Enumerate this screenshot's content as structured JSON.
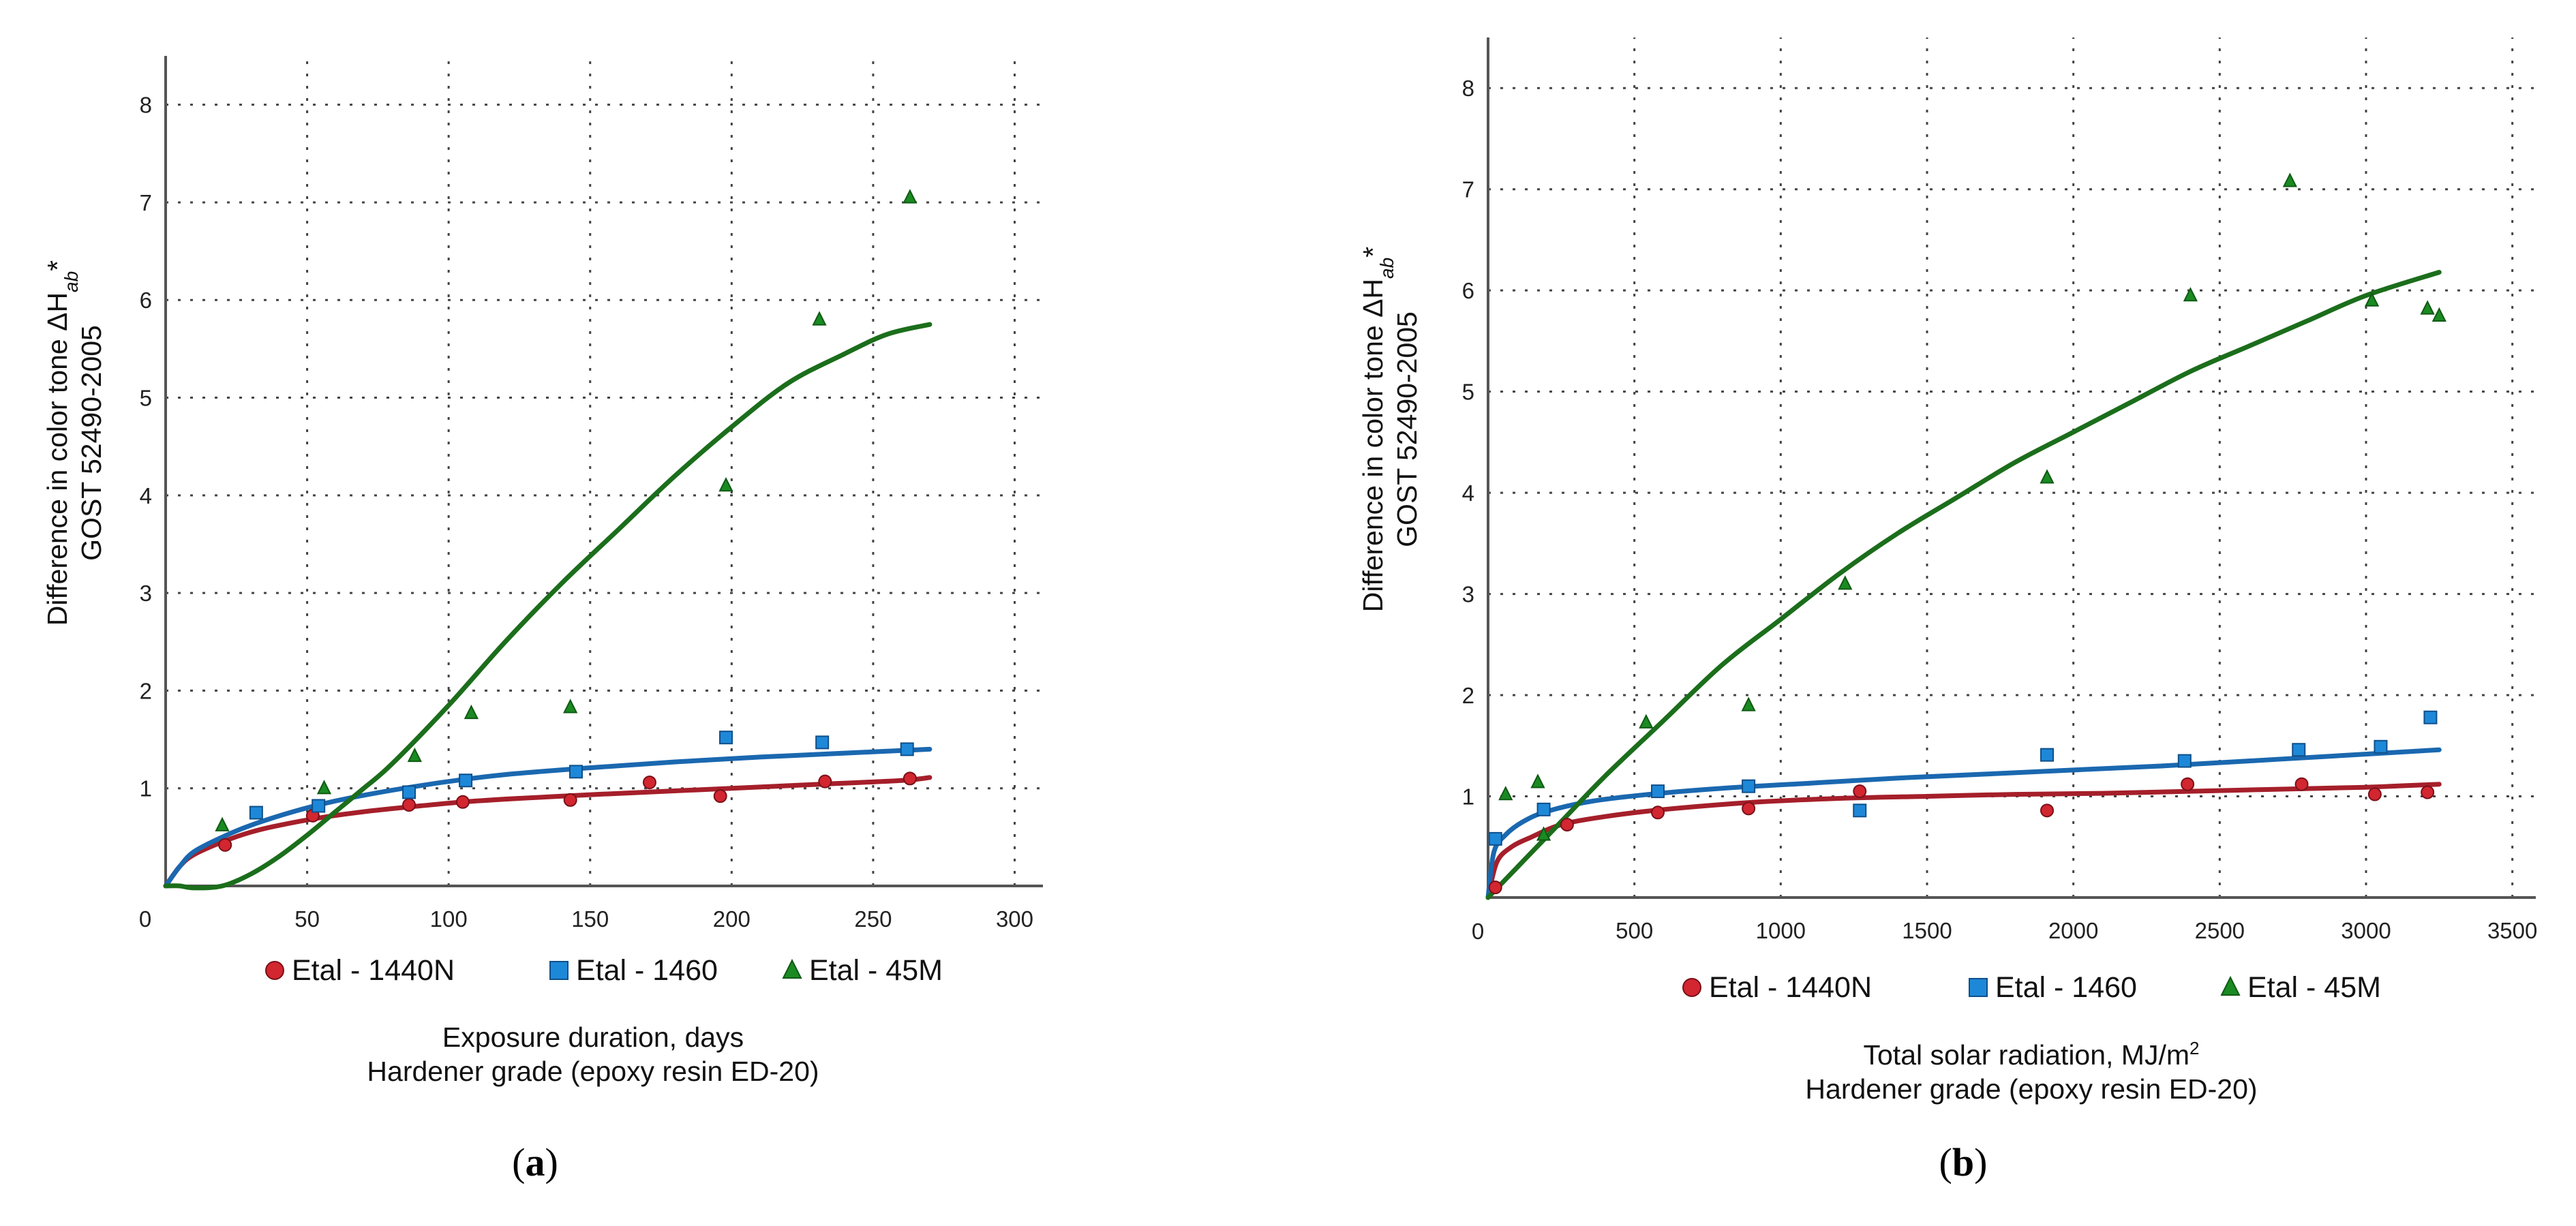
{
  "colors": {
    "red": "#d22630",
    "blue": "#1e88d8",
    "green": "#1a8a22",
    "red_line": "#a51f2a",
    "blue_line": "#1a68b0",
    "green_line": "#1b6e1b"
  },
  "chart_data": [
    {
      "id": "a",
      "type": "scatter",
      "caption_open": "(",
      "caption_letter": "a",
      "caption_close": ")",
      "ylabel_line1": "Difference in color tone ΔH",
      "ylabel_sub": "ab",
      "ylabel_star": "*",
      "ylabel_line2": "GOST  52490-2005",
      "xlabel_line1": "Exposure duration, days",
      "xlabel_sup": "",
      "xlabel_line2": "Hardener grade (epoxy resin ED-20)",
      "xlim": [
        0,
        310
      ],
      "ylim": [
        0,
        8.5
      ],
      "xticks": [
        0,
        50,
        100,
        150,
        200,
        250,
        300
      ],
      "yticks": [
        1,
        2,
        3,
        4,
        5,
        6,
        7,
        8
      ],
      "series": [
        {
          "name": "Etal - 1440N",
          "marker": "circle",
          "color": "red",
          "points": [
            [
              21,
              0.42
            ],
            [
              52,
              0.72
            ],
            [
              86,
              0.83
            ],
            [
              105,
              0.86
            ],
            [
              143,
              0.88
            ],
            [
              171,
              1.06
            ],
            [
              196,
              0.92
            ],
            [
              233,
              1.07
            ],
            [
              263,
              1.1
            ]
          ],
          "fit": [
            [
              0,
              0
            ],
            [
              5,
              0.2
            ],
            [
              10,
              0.32
            ],
            [
              20,
              0.45
            ],
            [
              30,
              0.55
            ],
            [
              40,
              0.62
            ],
            [
              55,
              0.7
            ],
            [
              70,
              0.76
            ],
            [
              90,
              0.82
            ],
            [
              110,
              0.87
            ],
            [
              140,
              0.92
            ],
            [
              170,
              0.96
            ],
            [
              200,
              1.0
            ],
            [
              230,
              1.04
            ],
            [
              260,
              1.08
            ],
            [
              270,
              1.11
            ]
          ]
        },
        {
          "name": "Etal - 1460",
          "marker": "square",
          "color": "blue",
          "points": [
            [
              32,
              0.75
            ],
            [
              54,
              0.82
            ],
            [
              86,
              0.96
            ],
            [
              106,
              1.08
            ],
            [
              145,
              1.17
            ],
            [
              198,
              1.52
            ],
            [
              232,
              1.47
            ],
            [
              262,
              1.4
            ]
          ],
          "fit": [
            [
              0,
              0
            ],
            [
              5,
              0.2
            ],
            [
              10,
              0.35
            ],
            [
              20,
              0.5
            ],
            [
              30,
              0.62
            ],
            [
              45,
              0.76
            ],
            [
              60,
              0.87
            ],
            [
              80,
              0.98
            ],
            [
              100,
              1.07
            ],
            [
              120,
              1.14
            ],
            [
              150,
              1.21
            ],
            [
              180,
              1.27
            ],
            [
              210,
              1.32
            ],
            [
              240,
              1.36
            ],
            [
              270,
              1.4
            ]
          ]
        },
        {
          "name": "Etal - 45M",
          "marker": "triangle",
          "color": "green",
          "points": [
            [
              20,
              0.62
            ],
            [
              56,
              1.0
            ],
            [
              88,
              1.33
            ],
            [
              108,
              1.77
            ],
            [
              143,
              1.83
            ],
            [
              198,
              4.1
            ],
            [
              231,
              5.8
            ],
            [
              263,
              7.05
            ]
          ],
          "fit": [
            [
              0,
              0
            ],
            [
              5,
              0.0
            ],
            [
              10,
              -0.02
            ],
            [
              20,
              0.0
            ],
            [
              30,
              0.12
            ],
            [
              40,
              0.3
            ],
            [
              50,
              0.52
            ],
            [
              60,
              0.76
            ],
            [
              70,
              1.0
            ],
            [
              80,
              1.25
            ],
            [
              100,
              1.85
            ],
            [
              120,
              2.5
            ],
            [
              140,
              3.1
            ],
            [
              160,
              3.65
            ],
            [
              180,
              4.2
            ],
            [
              200,
              4.7
            ],
            [
              220,
              5.15
            ],
            [
              240,
              5.45
            ],
            [
              255,
              5.65
            ],
            [
              270,
              5.75
            ]
          ]
        }
      ]
    },
    {
      "id": "b",
      "type": "scatter",
      "caption_open": "(",
      "caption_letter": "b",
      "caption_close": ")",
      "ylabel_line1": "Difference in color tone ΔH",
      "ylabel_sub": "ab",
      "ylabel_star": "*",
      "ylabel_line2": "GOST  52490-2005",
      "xlabel_line1": "Total solar radiation, MJ/m",
      "xlabel_sup": "2",
      "xlabel_line2": "Hardener grade (epoxy resin ED-20)",
      "xlim": [
        0,
        3580
      ],
      "ylim": [
        0,
        8.5
      ],
      "xticks": [
        0,
        500,
        1000,
        1500,
        2000,
        2500,
        3000,
        3500
      ],
      "yticks": [
        1,
        2,
        3,
        4,
        5,
        6,
        7,
        8
      ],
      "series": [
        {
          "name": "Etal - 1440N",
          "marker": "circle",
          "color": "red",
          "points": [
            [
              25,
              0.1
            ],
            [
              270,
              0.72
            ],
            [
              580,
              0.84
            ],
            [
              890,
              0.88
            ],
            [
              1270,
              1.05
            ],
            [
              1910,
              0.86
            ],
            [
              2390,
              1.12
            ],
            [
              2780,
              1.12
            ],
            [
              3030,
              1.02
            ],
            [
              3210,
              1.04
            ]
          ],
          "fit": [
            [
              0,
              0
            ],
            [
              30,
              0.35
            ],
            [
              80,
              0.5
            ],
            [
              150,
              0.6
            ],
            [
              250,
              0.72
            ],
            [
              400,
              0.8
            ],
            [
              600,
              0.87
            ],
            [
              900,
              0.94
            ],
            [
              1200,
              0.98
            ],
            [
              1500,
              1.0
            ],
            [
              1800,
              1.02
            ],
            [
              2100,
              1.03
            ],
            [
              2400,
              1.05
            ],
            [
              2700,
              1.07
            ],
            [
              3000,
              1.09
            ],
            [
              3250,
              1.12
            ]
          ]
        },
        {
          "name": "Etal - 1460",
          "marker": "square",
          "color": "blue",
          "points": [
            [
              25,
              0.58
            ],
            [
              190,
              0.87
            ],
            [
              580,
              1.05
            ],
            [
              890,
              1.1
            ],
            [
              1270,
              0.86
            ],
            [
              1910,
              1.41
            ],
            [
              2380,
              1.35
            ],
            [
              2770,
              1.46
            ],
            [
              3050,
              1.49
            ],
            [
              3220,
              1.78
            ]
          ],
          "fit": [
            [
              0,
              0
            ],
            [
              20,
              0.45
            ],
            [
              60,
              0.62
            ],
            [
              120,
              0.75
            ],
            [
              200,
              0.85
            ],
            [
              350,
              0.95
            ],
            [
              550,
              1.02
            ],
            [
              800,
              1.08
            ],
            [
              1100,
              1.13
            ],
            [
              1400,
              1.18
            ],
            [
              1700,
              1.22
            ],
            [
              2000,
              1.26
            ],
            [
              2300,
              1.3
            ],
            [
              2600,
              1.35
            ],
            [
              2900,
              1.4
            ],
            [
              3250,
              1.46
            ]
          ]
        },
        {
          "name": "Etal - 45M",
          "marker": "triangle",
          "color": "green",
          "points": [
            [
              60,
              1.02
            ],
            [
              170,
              1.14
            ],
            [
              190,
              0.62
            ],
            [
              540,
              1.73
            ],
            [
              890,
              1.9
            ],
            [
              1220,
              3.1
            ],
            [
              1910,
              4.15
            ],
            [
              2400,
              5.95
            ],
            [
              2740,
              7.08
            ],
            [
              3020,
              5.9
            ],
            [
              3210,
              5.82
            ],
            [
              3250,
              5.75
            ]
          ],
          "fit": [
            [
              0,
              0
            ],
            [
              100,
              0.3
            ],
            [
              250,
              0.75
            ],
            [
              400,
              1.2
            ],
            [
              600,
              1.75
            ],
            [
              800,
              2.3
            ],
            [
              1000,
              2.75
            ],
            [
              1200,
              3.2
            ],
            [
              1400,
              3.6
            ],
            [
              1600,
              3.95
            ],
            [
              1800,
              4.3
            ],
            [
              2000,
              4.6
            ],
            [
              2200,
              4.9
            ],
            [
              2400,
              5.2
            ],
            [
              2600,
              5.45
            ],
            [
              2800,
              5.7
            ],
            [
              3000,
              5.95
            ],
            [
              3250,
              6.18
            ]
          ]
        }
      ]
    }
  ]
}
